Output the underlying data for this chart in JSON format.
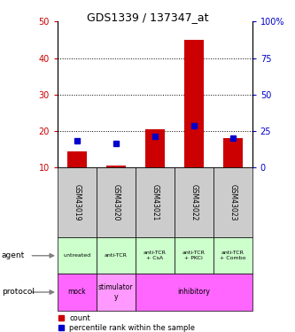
{
  "title": "GDS1339 / 137347_at",
  "samples": [
    "GSM43019",
    "GSM43020",
    "GSM43021",
    "GSM43022",
    "GSM43023"
  ],
  "counts": [
    14.5,
    10.5,
    20.5,
    45.0,
    18.0
  ],
  "count_base": 10,
  "percentile_ranks": [
    18.5,
    16.5,
    21.5,
    28.5,
    20.5
  ],
  "ylim_left": [
    10,
    50
  ],
  "ylim_right": [
    0,
    100
  ],
  "yticks_left": [
    10,
    20,
    30,
    40,
    50
  ],
  "yticks_right": [
    0,
    25,
    50,
    75,
    100
  ],
  "bar_color": "#cc0000",
  "dot_color": "#0000cc",
  "bar_width": 0.5,
  "agent_labels": [
    "untreated",
    "anti-TCR",
    "anti-TCR\n+ CsA",
    "anti-TCR\n+ PKCi",
    "anti-TCR\n+ Combo"
  ],
  "protocol_groups": [
    {
      "label": "mock",
      "start": 0,
      "end": 1,
      "color": "#ff66ff"
    },
    {
      "label": "stimulator\ny",
      "start": 1,
      "end": 2,
      "color": "#ff99ff"
    },
    {
      "label": "inhibitory",
      "start": 2,
      "end": 5,
      "color": "#ff66ff"
    }
  ],
  "sample_bg_color": "#cccccc",
  "agent_bg_color": "#ccffcc",
  "grid_color": "#000000",
  "left_tick_color": "#cc0000",
  "right_tick_color": "#0000cc",
  "legend_count_label": "count",
  "legend_pct_label": "percentile rank within the sample"
}
